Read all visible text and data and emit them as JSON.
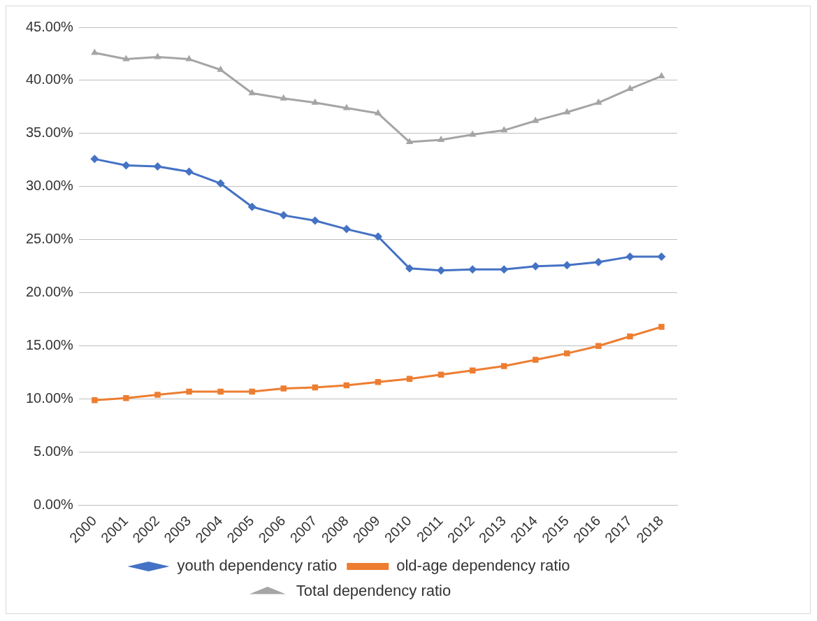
{
  "chart_data": {
    "type": "line",
    "categories": [
      "2000",
      "2001",
      "2002",
      "2003",
      "2004",
      "2005",
      "2006",
      "2007",
      "2008",
      "2009",
      "2010",
      "2011",
      "2012",
      "2013",
      "2014",
      "2015",
      "2016",
      "2017",
      "2018"
    ],
    "series": [
      {
        "name": "youth dependency ratio",
        "color": "#4472c4",
        "marker": "diamond",
        "values": [
          32.6,
          32.0,
          31.9,
          31.4,
          30.3,
          28.1,
          27.3,
          26.8,
          26.0,
          25.3,
          22.3,
          22.1,
          22.2,
          22.2,
          22.5,
          22.6,
          22.9,
          23.4,
          23.4
        ]
      },
      {
        "name": "old-age dependency ratio",
        "color": "#ed7d31",
        "marker": "square",
        "values": [
          9.9,
          10.1,
          10.4,
          10.7,
          10.7,
          10.7,
          11.0,
          11.1,
          11.3,
          11.6,
          11.9,
          12.3,
          12.7,
          13.1,
          13.7,
          14.3,
          15.0,
          15.9,
          16.8
        ]
      },
      {
        "name": "Total dependency ratio",
        "color": "#a5a5a5",
        "marker": "triangle",
        "values": [
          42.6,
          42.0,
          42.2,
          42.0,
          41.0,
          38.8,
          38.3,
          37.9,
          37.4,
          36.9,
          34.2,
          34.4,
          34.9,
          35.3,
          36.2,
          37.0,
          37.9,
          39.2,
          40.4
        ]
      }
    ],
    "ylim": [
      0,
      45
    ],
    "yticks": [
      {
        "value": 0,
        "label": "0.00%"
      },
      {
        "value": 5,
        "label": "5.00%"
      },
      {
        "value": 10,
        "label": "10.00%"
      },
      {
        "value": 15,
        "label": "15.00%"
      },
      {
        "value": 20,
        "label": "20.00%"
      },
      {
        "value": 25,
        "label": "25.00%"
      },
      {
        "value": 30,
        "label": "30.00%"
      },
      {
        "value": 35,
        "label": "35.00%"
      },
      {
        "value": 40,
        "label": "40.00%"
      },
      {
        "value": 45,
        "label": "45.00%"
      }
    ],
    "grid": "y",
    "legend": "bottom",
    "line_style": "solid"
  }
}
